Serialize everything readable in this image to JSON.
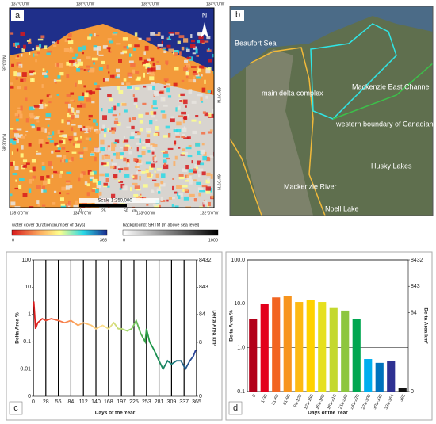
{
  "panels": {
    "a": {
      "label": "a",
      "north": "N",
      "top_coords": [
        "137°0'0\"W",
        "136°0'0\"W",
        "135°0'0\"W",
        "134°0'0\"W"
      ],
      "bottom_coords": [
        "135°0'0\"W",
        "134°0'0\"W",
        "133°0'0\"W",
        "132°0'0\"W"
      ],
      "left_coords": [
        "69°0'0\"N",
        "68°30'0\"N"
      ],
      "right_coords": [
        "69°0'0\"N",
        "68°0'0\"N"
      ],
      "scale": "Scale 1:250,000",
      "scale_ticks": [
        "0",
        "25",
        "50"
      ],
      "scale_unit": "km"
    },
    "b": {
      "label": "b",
      "places": [
        "Beaufort Sea",
        "main delta complex",
        "Mackenzie East Channel",
        "western boundary of Canadian Shield",
        "Husky Lakes",
        "Mackenzie River",
        "Noell Lake"
      ]
    }
  },
  "legends": [
    {
      "title": "water cover duration [number of days]",
      "min": "0",
      "max": "365"
    },
    {
      "title": "background: SRTM [m above sea level]",
      "min": "0",
      "max": "1000"
    }
  ],
  "chart_data": [
    {
      "type": "line",
      "panel_label": "c",
      "xlabel": "Days of the Year",
      "ylabel": "Delta Area %",
      "y2label": "Delta Area km²",
      "log_scale": true,
      "grid": "x",
      "x": [
        1,
        3,
        5,
        10,
        20,
        28,
        40,
        56,
        70,
        84,
        100,
        112,
        130,
        140,
        155,
        168,
        180,
        190,
        197,
        210,
        220,
        230,
        240,
        250,
        253,
        260,
        270,
        281,
        290,
        300,
        309,
        320,
        330,
        340,
        350,
        358,
        363
      ],
      "series": [
        {
          "values": [
            3,
            1,
            0.3,
            0.5,
            0.7,
            0.6,
            0.7,
            0.6,
            0.5,
            0.6,
            0.4,
            0.5,
            0.4,
            0.3,
            0.4,
            0.3,
            0.5,
            0.3,
            0.3,
            0.25,
            0.3,
            0.6,
            0.2,
            0.1,
            0.3,
            0.1,
            0.05,
            0.02,
            0.01,
            0.02,
            0.015,
            0.02,
            0.02,
            0.01,
            0.02,
            0.03,
            0.05
          ],
          "gradient": [
            "#d7191c",
            "#f46d43",
            "#fdae61",
            "#fee08b",
            "#a6d96a",
            "#1a9641",
            "#1b7a7a",
            "#2c3e9c"
          ]
        }
      ],
      "xlim": [
        0,
        365
      ],
      "xticks": [
        0,
        28,
        56,
        84,
        112,
        140,
        168,
        197,
        225,
        253,
        281,
        309,
        337,
        365
      ],
      "ylim": [
        0.001,
        100
      ],
      "yticks": [
        {
          "value": 0.001,
          "label": "0"
        },
        0.01,
        0.1,
        1,
        10,
        100
      ],
      "y2lim": [
        0.08432,
        8432
      ],
      "y2ticks": [
        {
          "value": 0.08432,
          "label": "0"
        },
        8,
        84,
        843,
        8432
      ]
    },
    {
      "type": "bar",
      "panel_label": "d",
      "xlabel": "Days of the Year",
      "ylabel": "Delta Area %",
      "y2label": "Delta Area km²",
      "log_scale": true,
      "grid": "y",
      "categories": [
        "0",
        "1-30",
        "31-60",
        "61-90",
        "91-120",
        "121-150",
        "151-180",
        "181-210",
        "211-240",
        "241-270",
        "271-300",
        "301-330",
        "331-364",
        "365"
      ],
      "values": [
        4.5,
        10,
        14,
        15,
        11,
        12,
        11,
        8,
        7,
        4.5,
        0.55,
        0.45,
        0.5,
        0.12
      ],
      "colors": [
        "#b2001a",
        "#e3001b",
        "#f26522",
        "#f7941d",
        "#fdb913",
        "#ffd200",
        "#e6e01e",
        "#c4d82e",
        "#8dc63f",
        "#00a651",
        "#00aeef",
        "#0072bc",
        "#2e3192",
        "#111111"
      ],
      "ylim": [
        0.1,
        100
      ],
      "yticks": [
        {
          "value": 0.1,
          "label": "0.1"
        },
        {
          "value": 1,
          "label": "1.0"
        },
        {
          "value": 10,
          "label": "10.0"
        },
        {
          "value": 100,
          "label": "100.0"
        }
      ],
      "y2lim": [
        0.08432,
        8432
      ],
      "y2ticks": [
        {
          "value": 0.08432,
          "label": "0"
        },
        84,
        843,
        8432
      ]
    }
  ]
}
